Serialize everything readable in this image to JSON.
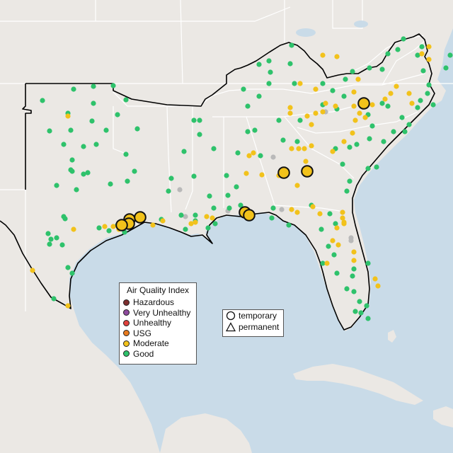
{
  "colors": {
    "ocean": "#c9dbe8",
    "land": "#e9e6e1",
    "outside_land": "#ebe8e4",
    "state_line": "#ffffff",
    "region_outline": "#000000",
    "hazardous": "#7e2f2f",
    "very_unhealthy": "#8e4a9e",
    "unhealthy": "#e0413c",
    "usg": "#e87a1e",
    "moderate": "#f2c21b",
    "good": "#2ec26b",
    "no_data": "#b9b9b9"
  },
  "aqi_legend": {
    "title": "Air Quality Index",
    "items": [
      {
        "label": "Hazardous",
        "color": "#7e2f2f"
      },
      {
        "label": "Very Unhealthy",
        "color": "#8e4a9e"
      },
      {
        "label": "Unhealthy",
        "color": "#e0413c"
      },
      {
        "label": "USG",
        "color": "#e87a1e"
      },
      {
        "label": "Moderate",
        "color": "#f2c21b"
      },
      {
        "label": "Good",
        "color": "#2ec26b"
      }
    ]
  },
  "monitor_type_legend": {
    "items": [
      {
        "label": "temporary",
        "symbol": "circle-outline-icon"
      },
      {
        "label": "permanent",
        "symbol": "triangle-outline-icon"
      }
    ]
  }
}
